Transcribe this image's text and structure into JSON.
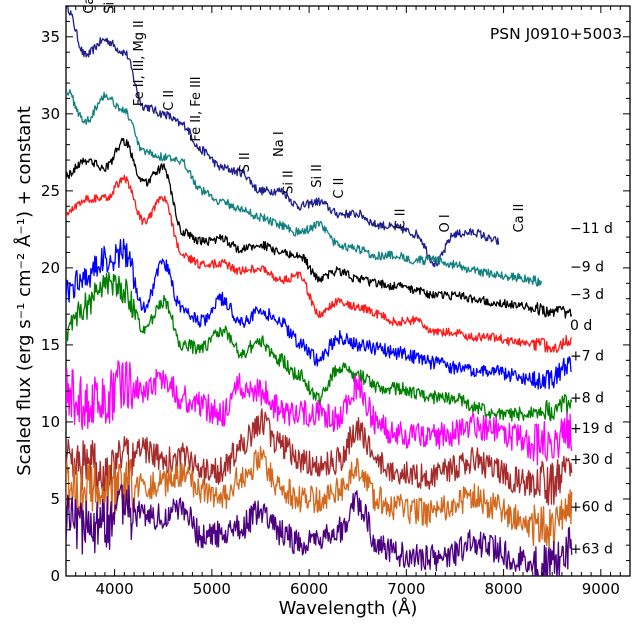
{
  "chart_data": {
    "type": "line",
    "title": "PSN J0910+5003",
    "xlabel": "Wavelength (Å)",
    "ylabel": "Scaled flux (erg s⁻¹ cm⁻² Å⁻¹) + constant",
    "xlim": [
      3500,
      9300
    ],
    "ylim": [
      0,
      37
    ],
    "xticks": [
      "4000",
      "5000",
      "6000",
      "7000",
      "8000",
      "9000"
    ],
    "yticks": [
      "0",
      "5",
      "10",
      "15",
      "20",
      "25",
      "30",
      "35"
    ],
    "ticks_inside": true,
    "grid": false,
    "x_wavelength": [
      3500,
      3700,
      3900,
      4100,
      4300,
      4500,
      4700,
      4900,
      5100,
      5300,
      5500,
      5700,
      5900,
      6100,
      6300,
      6500,
      6700,
      6900,
      7100,
      7300,
      7500,
      7700,
      7900,
      8100,
      8300,
      8500,
      8700
    ],
    "series": [
      {
        "name": "−11 d",
        "color": "#1f1f8f",
        "x_end": 7950,
        "label_y": 22.6,
        "values": [
          37,
          33.8,
          34.8,
          34,
          30.5,
          30,
          29.3,
          27.6,
          26.5,
          26.2,
          25,
          25,
          24,
          24.3,
          23.5,
          23.5,
          22.8,
          22.6,
          22.2,
          20.3,
          22.2,
          22.3,
          21.8
        ]
      },
      {
        "name": "−9 d",
        "color": "#118080",
        "x_end": 8400,
        "label_y": 20.1,
        "values": [
          31.5,
          29.5,
          31.2,
          30.2,
          27.5,
          27.2,
          26.8,
          25,
          24.3,
          23.8,
          23.3,
          22.8,
          22.3,
          22.8,
          21.5,
          21.2,
          20.8,
          20.8,
          20.5,
          20.5,
          20.2,
          19.8,
          19.6,
          19.4,
          19.2
        ]
      },
      {
        "name": "−3 d",
        "color": "#000000",
        "x_end": 8700,
        "label_y": 18.3,
        "values": [
          26,
          27,
          26.5,
          28.2,
          25.5,
          26.5,
          22.3,
          21.7,
          21.9,
          21.2,
          21.5,
          21,
          20.8,
          19.3,
          19.8,
          19.3,
          19,
          18.8,
          18.6,
          18.2,
          18.2,
          18,
          17.8,
          17.6,
          17.4,
          17.2,
          17.2
        ]
      },
      {
        "name": "0 d",
        "color": "#ff1a1a",
        "x_end": 8700,
        "label_y": 16.3,
        "values": [
          23.5,
          24.5,
          24.5,
          25.8,
          23,
          24.5,
          20.8,
          20.2,
          20.3,
          19.8,
          20,
          19.2,
          19.5,
          17,
          17.8,
          17.5,
          17,
          16.5,
          16.6,
          15.8,
          15.8,
          15.5,
          15.5,
          15.2,
          15.1,
          14.9,
          15.3
        ]
      },
      {
        "name": "+7 d",
        "color": "#0000ff",
        "x_end": 8700,
        "label_y": 14.3,
        "values": [
          18.5,
          19.5,
          20.5,
          21,
          17.5,
          20.3,
          17.2,
          16.5,
          18,
          16.5,
          17.2,
          16.5,
          15.2,
          14,
          15.5,
          15,
          14.8,
          14.5,
          14.2,
          13.8,
          13.5,
          13.3,
          13.3,
          13,
          12.8,
          12.8,
          13.8
        ]
      },
      {
        "name": "+8 d",
        "color": "#008000",
        "x_end": 8700,
        "label_y": 11.6,
        "values": [
          16,
          17.5,
          19,
          18.5,
          16,
          17.8,
          15,
          14.8,
          16,
          14.5,
          15.2,
          14,
          13,
          11.5,
          13.5,
          13,
          12.3,
          12.2,
          11.8,
          11.6,
          11.5,
          11,
          10.5,
          10.5,
          10.6,
          10.8,
          11.2
        ]
      },
      {
        "name": "+19 d",
        "color": "#ff00ff",
        "x_end": 8700,
        "label_y": 9.6,
        "values": [
          12,
          11,
          11.5,
          12.5,
          12,
          13,
          11.5,
          11,
          10.5,
          12.3,
          12,
          10.8,
          10.5,
          10.5,
          10.2,
          12.3,
          10,
          9.2,
          9,
          9,
          9.3,
          9.8,
          9.5,
          9,
          8.5,
          9,
          9.5
        ]
      },
      {
        "name": "+30 d",
        "color": "#a52a2a",
        "x_end": 8700,
        "label_y": 7.6,
        "values": [
          8,
          7.2,
          6.5,
          7.5,
          8.2,
          7.5,
          7.8,
          6.8,
          6.8,
          8.5,
          10,
          8.5,
          7.5,
          7,
          7.5,
          9.5,
          7.5,
          6.8,
          6.5,
          6.5,
          7,
          7.5,
          7,
          6.3,
          6,
          6,
          6.8
        ]
      },
      {
        "name": "+60 d",
        "color": "#d2691e",
        "x_end": 8700,
        "label_y": 4.5,
        "values": [
          5.8,
          5.5,
          5.5,
          6,
          5.8,
          6,
          6.5,
          5.5,
          5,
          6.5,
          7.5,
          5.8,
          5,
          5,
          5.5,
          7,
          5,
          4.5,
          4.2,
          4,
          4.8,
          5.2,
          4.5,
          3.8,
          3.2,
          3,
          4.3
        ]
      },
      {
        "name": "+63 d",
        "color": "#4b0082",
        "x_end": 8700,
        "label_y": 1.8,
        "values": [
          3.5,
          3.2,
          3.4,
          4.2,
          4,
          3.8,
          4.5,
          2.5,
          2.8,
          3.2,
          4.2,
          2.8,
          2.2,
          2.2,
          3,
          4.8,
          2.2,
          1.5,
          1.2,
          1.2,
          1.5,
          2.2,
          1.8,
          1.2,
          0.8,
          0.8,
          1.8
        ]
      }
    ],
    "annotations": [
      {
        "text": "Ca II",
        "x": 3780,
        "y": 36.5
      },
      {
        "text": "Si II",
        "x": 3990,
        "y": 36.5
      },
      {
        "text": "Fe II, III, Mg II",
        "x": 4290,
        "y": 30.5
      },
      {
        "text": "C II",
        "x": 4600,
        "y": 30.2
      },
      {
        "text": "Fe II, Fe III",
        "x": 4880,
        "y": 28.2
      },
      {
        "text": "S II",
        "x": 5380,
        "y": 26.2
      },
      {
        "text": "Na I",
        "x": 5730,
        "y": 27.2
      },
      {
        "text": "Si II",
        "x": 5830,
        "y": 24.8
      },
      {
        "text": "Si II",
        "x": 6120,
        "y": 25.2
      },
      {
        "text": "C II",
        "x": 6350,
        "y": 24.5
      },
      {
        "text": "C II",
        "x": 6980,
        "y": 22.5
      },
      {
        "text": "O I",
        "x": 7440,
        "y": 22.3
      },
      {
        "text": "Ca II",
        "x": 8200,
        "y": 22.3
      }
    ]
  }
}
